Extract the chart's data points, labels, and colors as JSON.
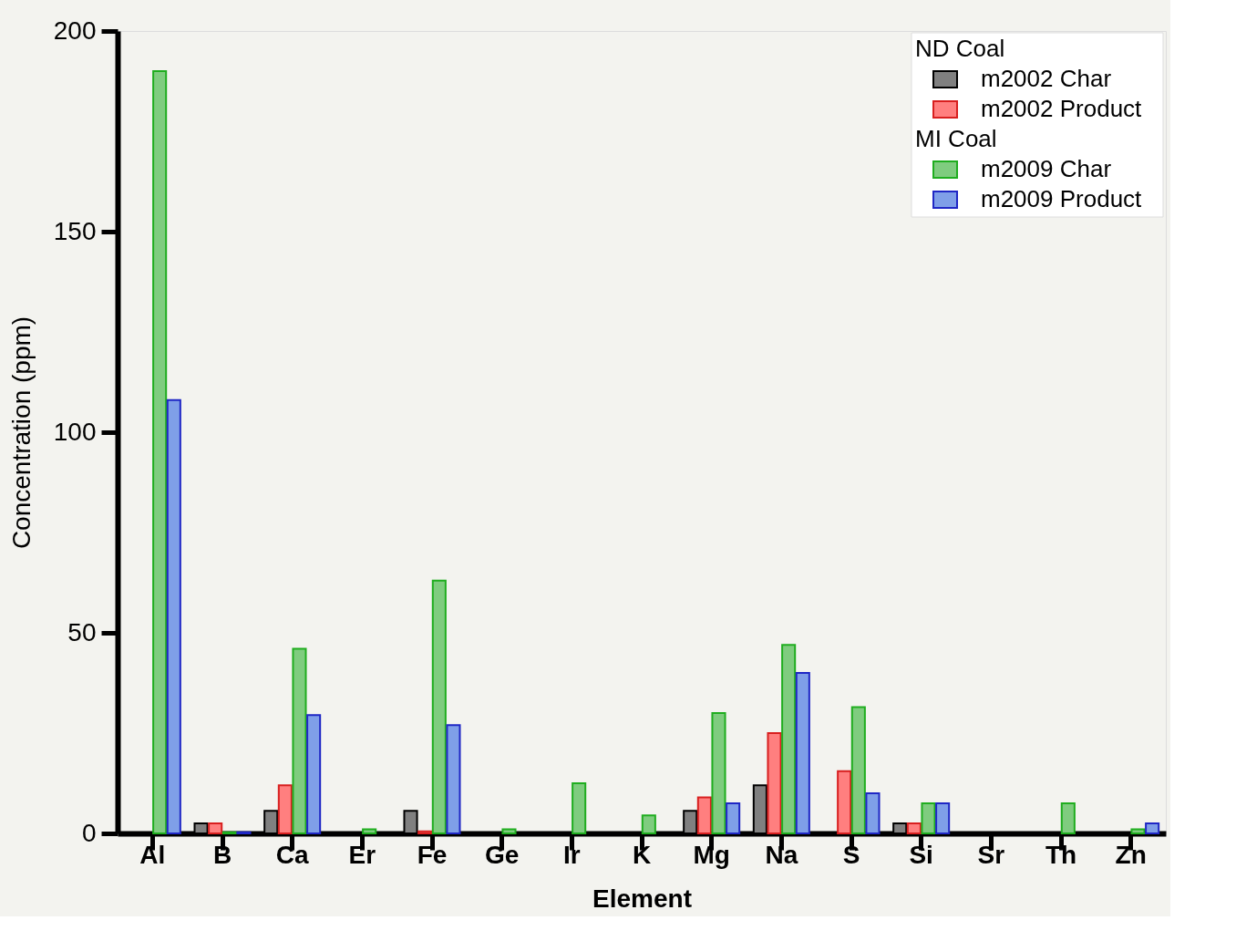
{
  "chart_data": {
    "type": "bar",
    "xlabel": "Element",
    "ylabel": "Concentration (ppm)",
    "legend_title": "ND Coal",
    "annotations": [
      "MI Coal"
    ],
    "categories": [
      "Al",
      "B",
      "Ca",
      "Er",
      "Fe",
      "Ge",
      "Ir",
      "K",
      "Mg",
      "Na",
      "S",
      "Si",
      "Sr",
      "Th",
      "Zn"
    ],
    "series": [
      {
        "name": "m2002 Char",
        "color": "#808080",
        "values": [
          null,
          2.5,
          5.6,
          null,
          5.6,
          null,
          null,
          null,
          5.6,
          12,
          null,
          2.5,
          null,
          null,
          null
        ]
      },
      {
        "name": "m2002 Product",
        "color": "#ff7f7f",
        "values": [
          null,
          2.5,
          12,
          null,
          0.5,
          null,
          null,
          null,
          9,
          25,
          15.5,
          2.5,
          null,
          null,
          null
        ]
      },
      {
        "name": "m2009 Char",
        "color": "#7fcc7f",
        "values": [
          190,
          0.3,
          46,
          1,
          63,
          1,
          12.5,
          4.5,
          30,
          47,
          31.5,
          7.5,
          null,
          7.5,
          1
        ]
      },
      {
        "name": "m2009 Product",
        "color": "#7f9fe8",
        "values": [
          108,
          0.3,
          29.5,
          null,
          27,
          null,
          null,
          null,
          7.5,
          40,
          10,
          7.5,
          null,
          null,
          2.5
        ]
      }
    ],
    "ylim": [
      0,
      200
    ],
    "yticks": [
      0,
      50,
      100,
      150,
      200
    ],
    "grid": false,
    "legend": "top right"
  }
}
